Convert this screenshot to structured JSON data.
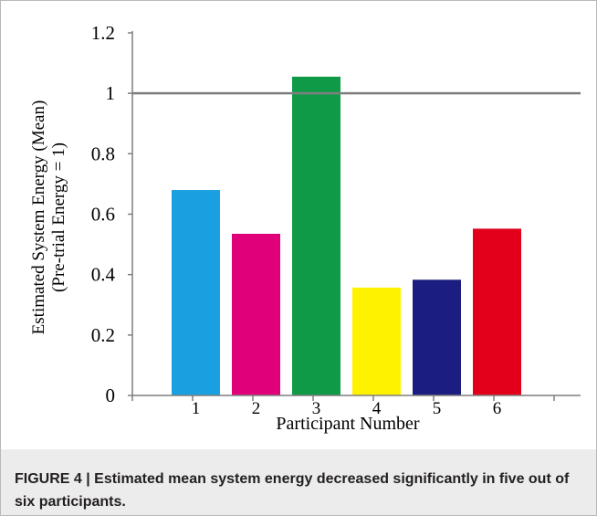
{
  "chart_data": {
    "type": "bar",
    "title": "",
    "xlabel": "Participant Number",
    "ylabel_lines": [
      "Estimated System Energy (Mean)",
      "(Pre-trial Energy = 1)"
    ],
    "categories": [
      "1",
      "2",
      "3",
      "4",
      "5",
      "6"
    ],
    "values": [
      0.68,
      0.535,
      1.055,
      0.357,
      0.383,
      0.552
    ],
    "colors": [
      "#1aa0e0",
      "#e0007a",
      "#0f9a48",
      "#fff200",
      "#1b1e80",
      "#e3001b"
    ],
    "ylim": [
      0,
      1.2
    ],
    "yticks": [
      "0",
      "0.2",
      "0.4",
      "0.6",
      "0.8",
      "1",
      "1.2"
    ],
    "reference_line": {
      "y": 1,
      "color": "#7f7f7f"
    },
    "grid": false,
    "legend": "none"
  },
  "caption": {
    "text": "FIGURE 4 | Estimated mean system energy decreased significantly in five out of six participants."
  }
}
